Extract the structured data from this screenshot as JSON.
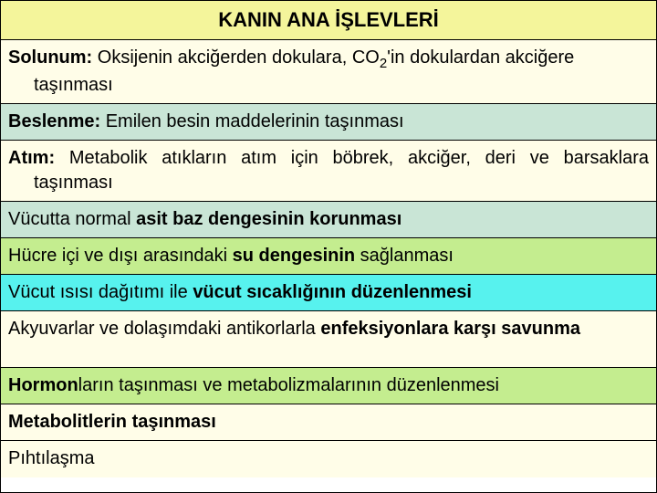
{
  "table": {
    "title": "KANIN ANA İŞLEVLERİ",
    "title_bg": "#f4f59b",
    "title_fontsize": 22,
    "row_fontsize": 20,
    "border_color": "#000000",
    "rows": [
      {
        "bg": "#fffde8",
        "height_hint": 66,
        "segments": [
          {
            "text": "Solunum:",
            "bold": true
          },
          {
            "text": " Oksijenin akciğerden dokulara, CO"
          },
          {
            "text": "2",
            "sub": true
          },
          {
            "text": "'in dokulardan akciğere taşınması"
          }
        ],
        "indent_after_first_line": true
      },
      {
        "bg": "#c9e5d6",
        "height_hint": 40,
        "segments": [
          {
            "text": "Beslenme:",
            "bold": true
          },
          {
            "text": " Emilen besin maddelerinin taşınması"
          }
        ]
      },
      {
        "bg": "#fffde8",
        "height_hint": 66,
        "segments": [
          {
            "text": "Atım:",
            "bold": true
          },
          {
            "text": "  Metabolik  atıkların  atım  için  böbrek,  akciğer,  deri  ve barsaklara taşınması"
          }
        ],
        "justify": true,
        "indent_after_first_line": true
      },
      {
        "bg": "#c9e5d6",
        "height_hint": 40,
        "segments": [
          {
            "text": "Vücutta normal "
          },
          {
            "text": "asit baz dengesinin korunması",
            "bold": true
          }
        ]
      },
      {
        "bg": "#c4ed8f",
        "height_hint": 40,
        "segments": [
          {
            "text": "Hücre içi ve dışı arasındaki "
          },
          {
            "text": "su dengesinin",
            "bold": true
          },
          {
            "text": " sağlanması"
          }
        ]
      },
      {
        "bg": "#57f2ee",
        "height_hint": 40,
        "segments": [
          {
            "text": "Vücut ısısı dağıtımı ile "
          },
          {
            "text": "vücut sıcaklığının düzenlenmesi",
            "bold": true
          }
        ]
      },
      {
        "bg": "#fffde8",
        "height_hint": 62,
        "segments": [
          {
            "text": "Akyuvarlar ve dolaşımdaki antikorlarla "
          },
          {
            "text": "enfeksiyonlara karşı savunma",
            "bold": true
          }
        ]
      },
      {
        "bg": "#c4ed8f",
        "height_hint": 40,
        "segments": [
          {
            "text": "Hormon",
            "bold": true
          },
          {
            "text": "ların taşınması ve metabolizmalarının düzenlenmesi"
          }
        ]
      },
      {
        "bg": "#fffde8",
        "height_hint": 40,
        "segments": [
          {
            "text": "Metabolitlerin taşınması",
            "bold": true
          }
        ]
      },
      {
        "bg": "#fffde8",
        "height_hint": 40,
        "segments": [
          {
            "text": "Pıhtılaşma"
          }
        ]
      }
    ]
  }
}
